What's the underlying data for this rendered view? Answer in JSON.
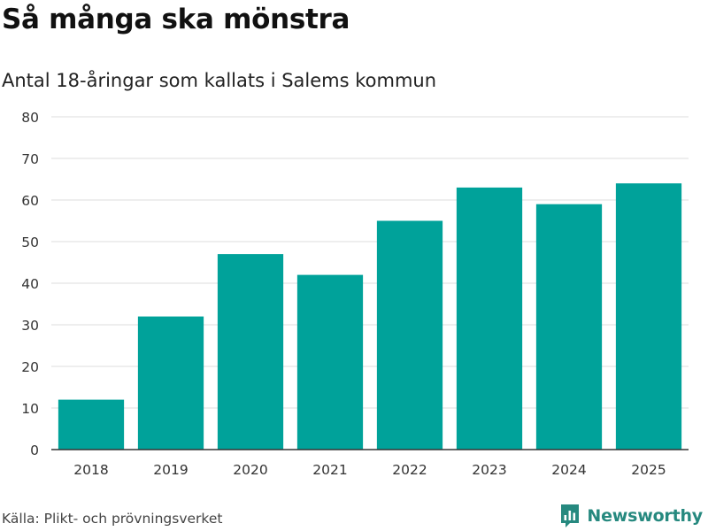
{
  "title": "Så många ska mönstra",
  "subtitle": "Antal 18-åringar som kallats i Salems kommun",
  "source": "Källa: Plikt- och prövningsverket",
  "brand": {
    "name": "Newsworthy",
    "icon": "newsworthy-logo-icon"
  },
  "colors": {
    "bar": "#00a29a",
    "grid": "#dcdcdc",
    "axis": "#333333",
    "brand": "#26897f"
  },
  "chart_data": {
    "type": "bar",
    "title": "Så många ska mönstra",
    "subtitle": "Antal 18-åringar som kallats i Salems kommun",
    "xlabel": "",
    "ylabel": "",
    "categories": [
      "2018",
      "2019",
      "2020",
      "2021",
      "2022",
      "2023",
      "2024",
      "2025"
    ],
    "values": [
      12,
      32,
      47,
      42,
      55,
      63,
      59,
      64
    ],
    "ylim": [
      0,
      80
    ],
    "yticks": [
      0,
      10,
      20,
      30,
      40,
      50,
      60,
      70,
      80
    ],
    "grid": true,
    "legend": "none"
  }
}
